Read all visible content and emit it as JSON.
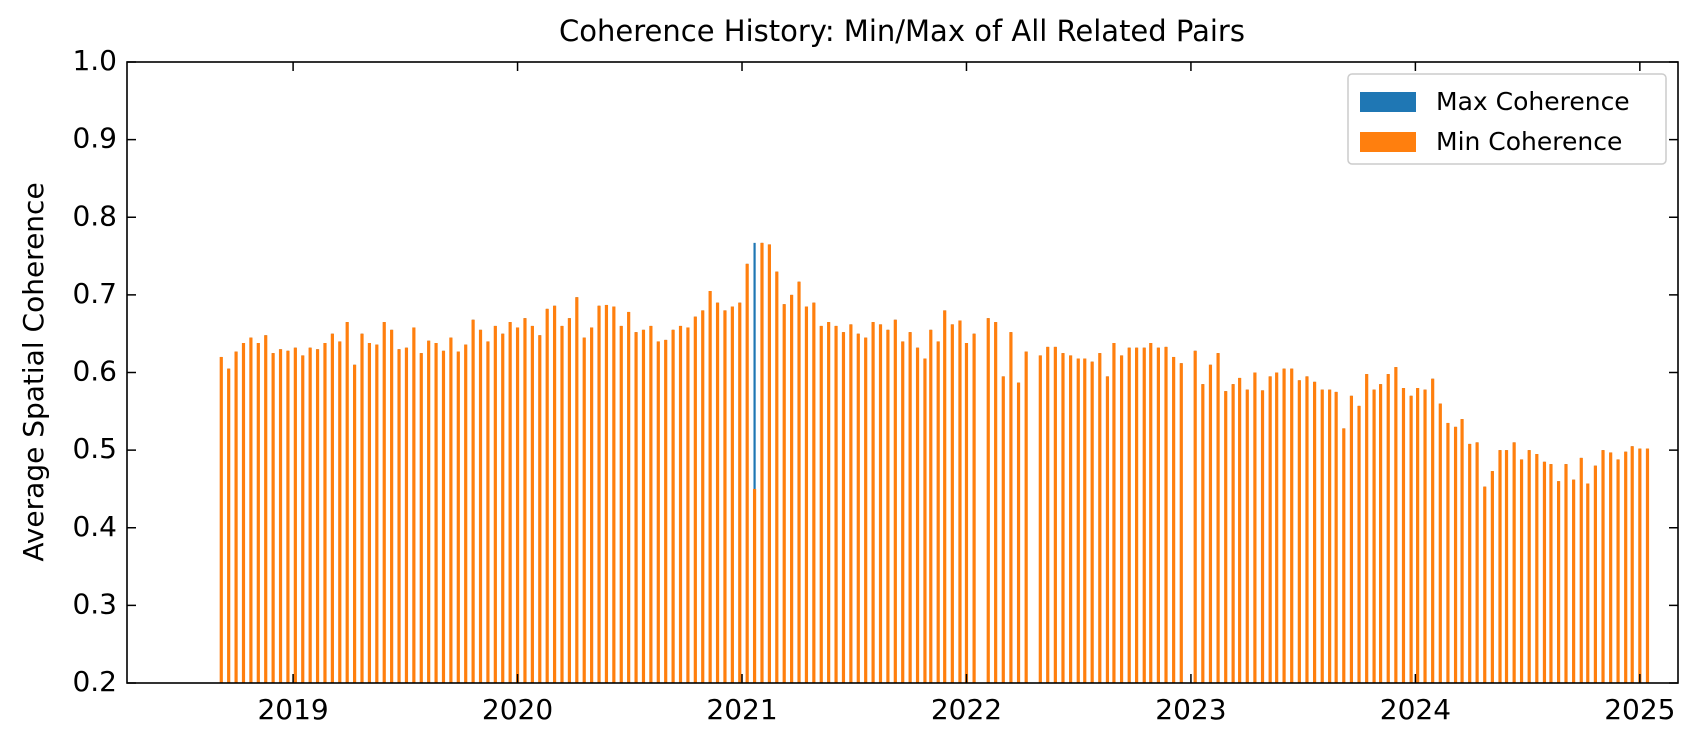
{
  "chart_data": {
    "type": "bar",
    "title": "Coherence History: Min/Max of All Related Pairs",
    "y_label": "Average Spatial Coherence",
    "x": [
      2018.68,
      2018.713,
      2018.746,
      2018.779,
      2018.812,
      2018.845,
      2018.878,
      2018.911,
      2018.944,
      2018.977,
      2019.01,
      2019.043,
      2019.076,
      2019.109,
      2019.142,
      2019.175,
      2019.208,
      2019.241,
      2019.274,
      2019.307,
      2019.34,
      2019.373,
      2019.406,
      2019.439,
      2019.472,
      2019.505,
      2019.538,
      2019.571,
      2019.604,
      2019.637,
      2019.67,
      2019.703,
      2019.736,
      2019.769,
      2019.802,
      2019.835,
      2019.868,
      2019.901,
      2019.934,
      2019.967,
      2020.0,
      2020.033,
      2020.066,
      2020.099,
      2020.132,
      2020.165,
      2020.198,
      2020.231,
      2020.264,
      2020.297,
      2020.33,
      2020.363,
      2020.396,
      2020.429,
      2020.462,
      2020.495,
      2020.528,
      2020.561,
      2020.594,
      2020.627,
      2020.66,
      2020.693,
      2020.726,
      2020.759,
      2020.792,
      2020.825,
      2020.858,
      2020.891,
      2020.924,
      2020.957,
      2020.99,
      2021.023,
      2021.056,
      2021.089,
      2021.122,
      2021.155,
      2021.188,
      2021.221,
      2021.254,
      2021.287,
      2021.32,
      2021.353,
      2021.386,
      2021.419,
      2021.452,
      2021.485,
      2021.518,
      2021.551,
      2021.584,
      2021.617,
      2021.65,
      2021.683,
      2021.716,
      2021.749,
      2021.782,
      2021.815,
      2021.841,
      2021.874,
      2021.903,
      2021.937,
      2021.971,
      2022.0,
      2022.034,
      2022.097,
      2022.13,
      2022.164,
      2022.198,
      2022.232,
      2022.266,
      2022.329,
      2022.362,
      2022.396,
      2022.43,
      2022.464,
      2022.498,
      2022.527,
      2022.56,
      2022.594,
      2022.628,
      2022.657,
      2022.691,
      2022.725,
      2022.758,
      2022.792,
      2022.821,
      2022.855,
      2022.889,
      2022.923,
      2022.957,
      2023.019,
      2023.053,
      2023.087,
      2023.121,
      2023.155,
      2023.188,
      2023.217,
      2023.251,
      2023.285,
      2023.319,
      2023.353,
      2023.382,
      2023.415,
      2023.449,
      2023.483,
      2023.517,
      2023.551,
      2023.585,
      2023.618,
      2023.647,
      2023.681,
      2023.715,
      2023.749,
      2023.783,
      2023.816,
      2023.845,
      2023.879,
      2023.913,
      2023.947,
      2023.981,
      2024.01,
      2024.043,
      2024.077,
      2024.111,
      2024.145,
      2024.179,
      2024.208,
      2024.242,
      2024.275,
      2024.309,
      2024.343,
      2024.377,
      2024.406,
      2024.44,
      2024.473,
      2024.507,
      2024.541,
      2024.575,
      2024.604,
      2024.638,
      2024.671,
      2024.705,
      2024.739,
      2024.768,
      2024.802,
      2024.836,
      2024.87,
      2024.903,
      2024.937,
      2024.966,
      2025.0,
      2025.034
    ],
    "series": [
      {
        "name": "Max Coherence",
        "color": "#1f77b4",
        "values": [
          0.62,
          0.605,
          0.627,
          0.638,
          0.645,
          0.638,
          0.648,
          0.625,
          0.63,
          0.628,
          0.632,
          0.622,
          0.632,
          0.63,
          0.638,
          0.65,
          0.64,
          0.665,
          0.61,
          0.65,
          0.638,
          0.636,
          0.665,
          0.655,
          0.63,
          0.632,
          0.658,
          0.625,
          0.641,
          0.638,
          0.628,
          0.645,
          0.627,
          0.636,
          0.668,
          0.655,
          0.64,
          0.66,
          0.65,
          0.665,
          0.658,
          0.67,
          0.66,
          0.648,
          0.682,
          0.686,
          0.66,
          0.67,
          0.697,
          0.645,
          0.658,
          0.686,
          0.687,
          0.685,
          0.66,
          0.678,
          0.652,
          0.655,
          0.66,
          0.64,
          0.642,
          0.655,
          0.66,
          0.658,
          0.672,
          0.68,
          0.705,
          0.69,
          0.68,
          0.685,
          0.69,
          0.74,
          0.767,
          0.767,
          0.765,
          0.73,
          0.688,
          0.7,
          0.717,
          0.685,
          0.69,
          0.66,
          0.665,
          0.66,
          0.652,
          0.662,
          0.65,
          0.645,
          0.665,
          0.662,
          0.655,
          0.668,
          0.64,
          0.652,
          0.632,
          0.618,
          0.655,
          0.64,
          0.68,
          0.662,
          0.667,
          0.638,
          0.65,
          0.67,
          0.665,
          0.595,
          0.652,
          0.587,
          0.627,
          0.622,
          0.633,
          0.633,
          0.625,
          0.622,
          0.618,
          0.618,
          0.614,
          0.625,
          0.595,
          0.638,
          0.622,
          0.632,
          0.632,
          0.632,
          0.638,
          0.632,
          0.633,
          0.62,
          0.612,
          0.628,
          0.585,
          0.61,
          0.625,
          0.576,
          0.585,
          0.593,
          0.578,
          0.6,
          0.577,
          0.595,
          0.6,
          0.605,
          0.605,
          0.59,
          0.595,
          0.588,
          0.578,
          0.578,
          0.575,
          0.528,
          0.57,
          0.557,
          0.598,
          0.578,
          0.585,
          0.598,
          0.607,
          0.58,
          0.57,
          0.58,
          0.578,
          0.592,
          0.56,
          0.535,
          0.53,
          0.54,
          0.508,
          0.51,
          0.453,
          0.473,
          0.5,
          0.5,
          0.51,
          0.488,
          0.5,
          0.495,
          0.485,
          0.482,
          0.46,
          0.482,
          0.462,
          0.49,
          0.457,
          0.48,
          0.5,
          0.497,
          0.488,
          0.498,
          0.505,
          0.502,
          0.502
        ]
      },
      {
        "name": "Min Coherence",
        "color": "#ff7f0e",
        "values": [
          0.62,
          0.605,
          0.627,
          0.638,
          0.645,
          0.638,
          0.648,
          0.625,
          0.63,
          0.628,
          0.632,
          0.622,
          0.632,
          0.63,
          0.638,
          0.65,
          0.64,
          0.665,
          0.61,
          0.65,
          0.638,
          0.636,
          0.665,
          0.655,
          0.63,
          0.632,
          0.658,
          0.625,
          0.641,
          0.638,
          0.628,
          0.645,
          0.627,
          0.636,
          0.668,
          0.655,
          0.64,
          0.66,
          0.65,
          0.665,
          0.658,
          0.67,
          0.66,
          0.648,
          0.682,
          0.686,
          0.66,
          0.67,
          0.697,
          0.645,
          0.658,
          0.686,
          0.687,
          0.685,
          0.66,
          0.678,
          0.652,
          0.655,
          0.66,
          0.64,
          0.642,
          0.655,
          0.66,
          0.658,
          0.672,
          0.68,
          0.705,
          0.69,
          0.68,
          0.685,
          0.69,
          0.74,
          0.45,
          0.767,
          0.765,
          0.73,
          0.688,
          0.7,
          0.717,
          0.685,
          0.69,
          0.66,
          0.665,
          0.66,
          0.652,
          0.662,
          0.65,
          0.645,
          0.665,
          0.662,
          0.655,
          0.668,
          0.64,
          0.652,
          0.632,
          0.618,
          0.655,
          0.64,
          0.68,
          0.662,
          0.667,
          0.638,
          0.65,
          0.67,
          0.665,
          0.595,
          0.652,
          0.587,
          0.627,
          0.622,
          0.633,
          0.633,
          0.625,
          0.622,
          0.618,
          0.618,
          0.614,
          0.625,
          0.595,
          0.638,
          0.622,
          0.632,
          0.632,
          0.632,
          0.638,
          0.632,
          0.633,
          0.62,
          0.612,
          0.628,
          0.585,
          0.61,
          0.625,
          0.576,
          0.585,
          0.593,
          0.578,
          0.6,
          0.577,
          0.595,
          0.6,
          0.605,
          0.605,
          0.59,
          0.595,
          0.588,
          0.578,
          0.578,
          0.575,
          0.528,
          0.57,
          0.557,
          0.598,
          0.578,
          0.585,
          0.598,
          0.607,
          0.58,
          0.57,
          0.58,
          0.578,
          0.592,
          0.56,
          0.535,
          0.53,
          0.54,
          0.508,
          0.51,
          0.453,
          0.473,
          0.5,
          0.5,
          0.51,
          0.488,
          0.5,
          0.495,
          0.485,
          0.482,
          0.46,
          0.482,
          0.462,
          0.49,
          0.457,
          0.48,
          0.5,
          0.497,
          0.488,
          0.498,
          0.505,
          0.502,
          0.502
        ]
      }
    ],
    "xlim": [
      2018.26,
      2025.17
    ],
    "xticks": [
      2019,
      2020,
      2021,
      2022,
      2023,
      2024,
      2025
    ],
    "ylim": [
      0.2,
      1.0
    ],
    "yticks": [
      0.2,
      0.3,
      0.4,
      0.5,
      0.6,
      0.7,
      0.8,
      0.9,
      {
        "value": 1.0,
        "label": "1.0"
      }
    ],
    "legend": "upper right",
    "grid": false
  }
}
